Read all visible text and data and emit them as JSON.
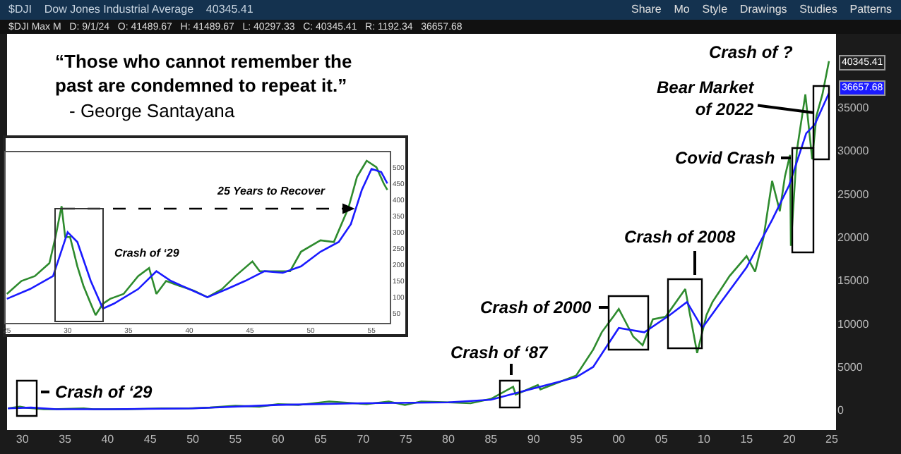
{
  "chart_data": [
    {
      "type": "line",
      "title": "“Those who cannot remember the\npast are condemned to repeat it.”",
      "subtitle": "- George Santayana",
      "x": [
        1928.3,
        1929.7,
        1930.3,
        1932.5,
        1933.5,
        1937.2,
        1938.3,
        1942.3,
        1946.4,
        1949.5,
        1952,
        1955,
        1957.8,
        1960,
        1962.4,
        1966,
        1970.4,
        1973,
        1974.9,
        1976.8,
        1980,
        1982.6,
        1985,
        1987.6,
        1987.9,
        1990.5,
        1990.8,
        1995,
        1997,
        1998,
        1999.5,
        2000,
        2001.7,
        2002.8,
        2004,
        2005.5,
        2007.8,
        2009.2,
        2010.3,
        2011,
        2013,
        2015,
        2016,
        2017,
        2018,
        2018.9,
        2019.5,
        2020.1,
        2020.2,
        2020.9,
        2021.9,
        2022.7,
        2023.2,
        2023.9,
        2024.67
      ],
      "series": [
        {
          "color": "#2e8b2e",
          "values": [
            200,
            400,
            300,
            100,
            100,
            200,
            100,
            100,
            200,
            200,
            300,
            500,
            400,
            700,
            600,
            1000,
            700,
            1000,
            600,
            1000,
            900,
            800,
            1300,
            2700,
            1800,
            2900,
            2400,
            4000,
            7000,
            9000,
            11000,
            11700,
            8500,
            7500,
            10500,
            10800,
            14000,
            6600,
            11000,
            12500,
            15500,
            17800,
            16000,
            20000,
            26500,
            23000,
            27000,
            29500,
            19000,
            30000,
            36500,
            29000,
            34000,
            36500,
            40345.41
          ]
        },
        {
          "color": "#1a1aff",
          "x": [
            1928.3,
            1931,
            1934,
            1940,
            1950,
            1960,
            1970,
            1980,
            1985,
            1990,
            1995,
            1997,
            2000,
            2003,
            2006,
            2008,
            2009.8,
            2012,
            2015,
            2018,
            2020,
            2022,
            2023,
            2024.67
          ],
          "values": [
            200,
            300,
            100,
            100,
            200,
            600,
            800,
            900,
            1200,
            2500,
            3800,
            5000,
            9500,
            9000,
            11000,
            12500,
            9500,
            12500,
            16500,
            22000,
            26000,
            32000,
            33000,
            36657.68
          ]
        }
      ],
      "xlim": [
        1928.2,
        2025.5
      ],
      "xticks": [
        {
          "value": 1930,
          "label": "30"
        },
        {
          "value": 1935,
          "label": "35"
        },
        {
          "value": 1940,
          "label": "40"
        },
        {
          "value": 1945,
          "label": "45"
        },
        {
          "value": 1950,
          "label": "50"
        },
        {
          "value": 1955,
          "label": "55"
        },
        {
          "value": 1960,
          "label": "60"
        },
        {
          "value": 1965,
          "label": "65"
        },
        {
          "value": 1970,
          "label": "70"
        },
        {
          "value": 1975,
          "label": "75"
        },
        {
          "value": 1980,
          "label": "80"
        },
        {
          "value": 1985,
          "label": "85"
        },
        {
          "value": 1990,
          "label": "90"
        },
        {
          "value": 1995,
          "label": "95"
        },
        {
          "value": 2000,
          "label": "00"
        },
        {
          "value": 2005,
          "label": "05"
        },
        {
          "value": 2010,
          "label": "10"
        },
        {
          "value": 2015,
          "label": "15"
        },
        {
          "value": 2020,
          "label": "20"
        },
        {
          "value": 2025,
          "label": "25"
        }
      ],
      "ylim": [
        -2300,
        43500
      ],
      "yticks": [
        0,
        5000,
        10000,
        15000,
        20000,
        25000,
        30000,
        35000
      ],
      "annotations": [
        "$DJI    Dow Jones Industrial Average    40345.41",
        "Share    Mo    Style    Drawings    Studies    Patterns",
        "$DJI Max M   D: 9/1/24   O: 41489.67   H: 41489.67   L: 40297.33   C: 40345.41   R: 1192.34   36657.68",
        "40345.41",
        "36657.68",
        "Crash of ‘29",
        "Crash of ‘87",
        "Crash of 2000",
        "Crash of 2008",
        "Covid Crash",
        {
          "text": "Bear Market\nof 2022",
          "x": 2022.8,
          "y": 34400
        },
        "Crash of ?"
      ]
    },
    {
      "type": "line",
      "x": [
        1925.0,
        1926.2,
        1927.3,
        1928.5,
        1929.0,
        1929.5,
        1929.8,
        1930.2,
        1930.8,
        1931.3,
        1931.9,
        1932.3,
        1932.9,
        1933.5,
        1934.6,
        1935.8,
        1936.7,
        1937.3,
        1938.1,
        1939.2,
        1940.4,
        1941.5,
        1942.7,
        1943.8,
        1945.2,
        1945.8,
        1947.3,
        1948.3,
        1949.2,
        1950.8,
        1951.9,
        1953.1,
        1953.8,
        1954.6,
        1955.4,
        1956.0,
        1956.3
      ],
      "series": [
        {
          "color": "#2e8b2e",
          "values": [
            110,
            150,
            165,
            205,
            285,
            380,
            285,
            285,
            195,
            135,
            80,
            45,
            80,
            95,
            110,
            165,
            190,
            110,
            150,
            135,
            120,
            100,
            125,
            165,
            210,
            180,
            180,
            180,
            240,
            275,
            270,
            375,
            470,
            520,
            500,
            450,
            430
          ]
        },
        {
          "color": "#1a1aff",
          "x": [
            1925,
            1926.9,
            1928.8,
            1930,
            1930.8,
            1931.9,
            1932.9,
            1933.8,
            1935.8,
            1937.3,
            1938.5,
            1940,
            1941.5,
            1943.1,
            1944.6,
            1946.2,
            1947.7,
            1949.2,
            1950.8,
            1952.3,
            1953.3,
            1954.2,
            1955,
            1955.8,
            1956.3
          ],
          "values": [
            95,
            125,
            165,
            300,
            270,
            150,
            65,
            80,
            125,
            180,
            150,
            125,
            100,
            125,
            150,
            180,
            175,
            195,
            240,
            270,
            325,
            430,
            495,
            485,
            450
          ]
        }
      ],
      "xlim": [
        1924.9,
        1956.5
      ],
      "ylim": [
        21,
        546
      ],
      "xticks": [
        {
          "value": 1925,
          "label": "25"
        },
        {
          "value": 1930,
          "label": "30"
        },
        {
          "value": 1935,
          "label": "35"
        },
        {
          "value": 1940,
          "label": "40"
        },
        {
          "value": 1945,
          "label": "45"
        },
        {
          "value": 1950,
          "label": "50"
        },
        {
          "value": 1955,
          "label": "55"
        }
      ],
      "yticks": [
        50,
        100,
        150,
        200,
        250,
        300,
        350,
        400,
        450,
        500
      ],
      "annotations": [
        "25 Years to Recover",
        "Crash of ‘29"
      ]
    }
  ]
}
